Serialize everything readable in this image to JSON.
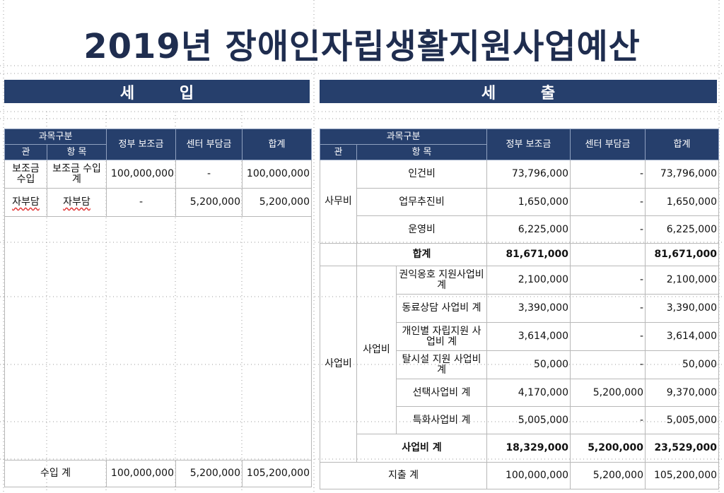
{
  "title": "2019년  장애인자립생활지원사업예산",
  "income": {
    "banner": "세 입",
    "headers": {
      "category": "과목구분",
      "gwan": "관",
      "hangmok": "항 목",
      "gov": "정부\n보조금",
      "center": "센터\n부담금",
      "total": "합계"
    },
    "rows": [
      {
        "gwan": "보조금\n수입",
        "item": "보조금\n수입 계",
        "gov": "100,000,000",
        "center": "-",
        "total": "100,000,000"
      },
      {
        "gwan": "자부담",
        "item": "자부담",
        "gov": "-",
        "center": "5,200,000",
        "total": "5,200,000"
      }
    ],
    "footer": {
      "label": "수입 계",
      "gov": "100,000,000",
      "center": "5,200,000",
      "total": "105,200,000"
    }
  },
  "expense": {
    "banner": "세 출",
    "headers": {
      "category": "과목구분",
      "gwan": "관",
      "hangmok": "항 목",
      "gov": "정부\n보조금",
      "center": "센터\n부담금",
      "total": "합계"
    },
    "office_group": "사무비",
    "office_rows": [
      {
        "item": "인건비",
        "gov": "73,796,000",
        "center": "-",
        "total": "73,796,000"
      },
      {
        "item": "업무추진비",
        "gov": "1,650,000",
        "center": "-",
        "total": "1,650,000"
      },
      {
        "item": "운영비",
        "gov": "6,225,000",
        "center": "-",
        "total": "6,225,000"
      }
    ],
    "office_subtotal": {
      "label": "합계",
      "gov": "81,671,000",
      "center": "",
      "total": "81,671,000"
    },
    "business_group": "사업비",
    "business_sub": "사업비",
    "business_rows": [
      {
        "item": "권익옹호\n지원사업비 계",
        "gov": "2,100,000",
        "center": "-",
        "total": "2,100,000"
      },
      {
        "item": "동료상담\n사업비 계",
        "gov": "3,390,000",
        "center": "-",
        "total": "3,390,000"
      },
      {
        "item": "개인별 자립지원\n사업비 계",
        "gov": "3,614,000",
        "center": "-",
        "total": "3,614,000"
      },
      {
        "item": "탈시설 지원\n사업비 계",
        "gov": "50,000",
        "center": "-",
        "total": "50,000"
      },
      {
        "item": "선택사업비 계",
        "gov": "4,170,000",
        "center": "5,200,000",
        "total": "9,370,000"
      },
      {
        "item": "특화사업비 계",
        "gov": "5,005,000",
        "center": "-",
        "total": "5,005,000"
      }
    ],
    "business_subtotal": {
      "label": "사업비 계",
      "gov": "18,329,000",
      "center": "5,200,000",
      "total": "23,529,000"
    },
    "footer": {
      "label": "지출 계",
      "gov": "100,000,000",
      "center": "5,200,000",
      "total": "105,200,000"
    }
  }
}
